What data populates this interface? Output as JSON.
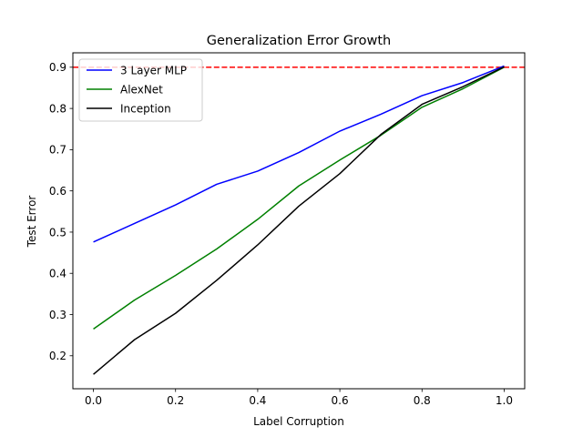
{
  "chart_data": {
    "type": "line",
    "title": "Generalization Error Growth",
    "xlabel": "Label Corruption",
    "ylabel": "Test Error",
    "xlim": [
      -0.05,
      1.05
    ],
    "ylim": [
      0.12,
      0.935
    ],
    "xticks": [
      0.0,
      0.2,
      0.4,
      0.6,
      0.8,
      1.0
    ],
    "xtick_labels": [
      "0.0",
      "0.2",
      "0.4",
      "0.6",
      "0.8",
      "1.0"
    ],
    "yticks": [
      0.2,
      0.3,
      0.4,
      0.5,
      0.6,
      0.7,
      0.8,
      0.9
    ],
    "ytick_labels": [
      "0.2",
      "0.3",
      "0.4",
      "0.5",
      "0.6",
      "0.7",
      "0.8",
      "0.9"
    ],
    "grid": false,
    "legend_position": "top-left",
    "x": [
      0.0,
      0.1,
      0.2,
      0.3,
      0.4,
      0.5,
      0.6,
      0.7,
      0.8,
      0.9,
      1.0
    ],
    "series": [
      {
        "name": "3 Layer MLP",
        "color": "#0000ff",
        "values": [
          0.476,
          0.521,
          0.566,
          0.616,
          0.648,
          0.693,
          0.745,
          0.786,
          0.831,
          0.863,
          0.903
        ]
      },
      {
        "name": "AlexNet",
        "color": "#008000",
        "values": [
          0.265,
          0.335,
          0.395,
          0.459,
          0.531,
          0.612,
          0.675,
          0.735,
          0.803,
          0.848,
          0.9
        ]
      },
      {
        "name": "Inception",
        "color": "#000000",
        "values": [
          0.155,
          0.239,
          0.303,
          0.383,
          0.469,
          0.563,
          0.642,
          0.737,
          0.81,
          0.853,
          0.901
        ]
      }
    ],
    "reference_line": {
      "y": 0.9,
      "color": "#ff0000",
      "style": "dashed"
    }
  }
}
